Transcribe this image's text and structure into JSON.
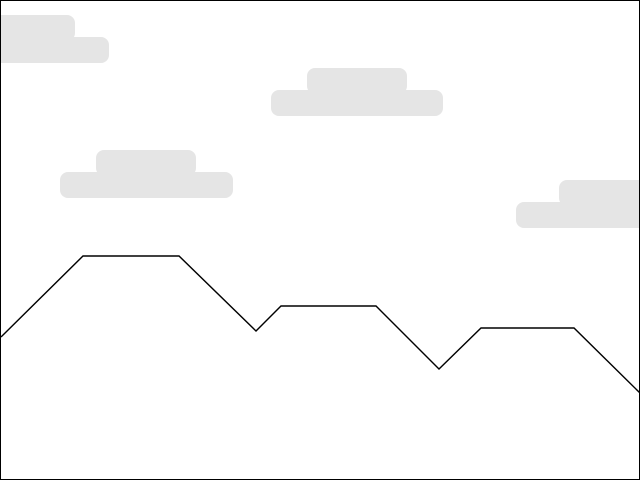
{
  "scene": {
    "sky_color": "#ffffff",
    "cloud_color": "#e5e5e5",
    "terrain_line_color": "#000000",
    "border_color": "#000000",
    "cloud_count": 4,
    "terrain_segments": 10
  }
}
